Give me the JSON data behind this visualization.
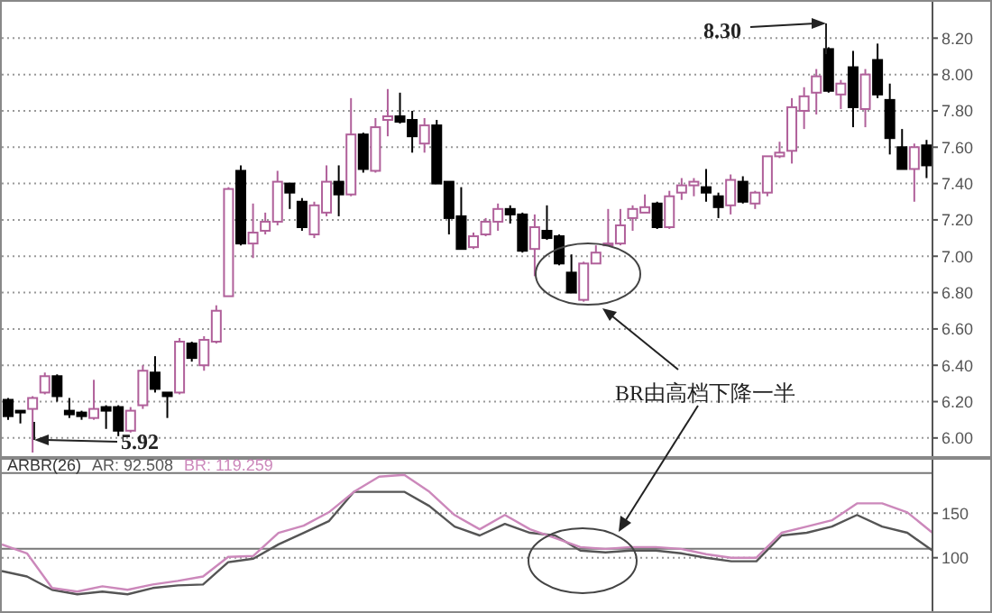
{
  "chart_data": [
    {
      "type": "candlestick",
      "categories": [
        null,
        null,
        null,
        null,
        null,
        null,
        null,
        null,
        null,
        null,
        null,
        null,
        null,
        null,
        null,
        null,
        null,
        null,
        null,
        null,
        null,
        null,
        null,
        null,
        null,
        null,
        null,
        null,
        null,
        null,
        null,
        null,
        null,
        null,
        null,
        null,
        null,
        null,
        null,
        null,
        null,
        null,
        null,
        null,
        null,
        null,
        null,
        null,
        null,
        null,
        null,
        null,
        null,
        null,
        null,
        null,
        null,
        null,
        null,
        null,
        null,
        null,
        null,
        null,
        null,
        null,
        null,
        null,
        null,
        null,
        null,
        null,
        null,
        null,
        null,
        null
      ],
      "ohlc": [
        [
          6.21,
          6.22,
          6.1,
          6.12
        ],
        [
          6.15,
          6.15,
          6.08,
          6.14
        ],
        [
          6.16,
          6.23,
          5.92,
          6.22
        ],
        [
          6.25,
          6.36,
          6.24,
          6.34
        ],
        [
          6.34,
          6.35,
          6.2,
          6.23
        ],
        [
          6.15,
          6.22,
          6.11,
          6.13
        ],
        [
          6.14,
          6.15,
          6.1,
          6.12
        ],
        [
          6.11,
          6.32,
          6.1,
          6.16
        ],
        [
          6.17,
          6.18,
          6.05,
          6.15
        ],
        [
          6.17,
          6.18,
          6.01,
          6.04
        ],
        [
          6.04,
          6.17,
          6.03,
          6.15
        ],
        [
          6.18,
          6.4,
          6.16,
          6.37
        ],
        [
          6.36,
          6.45,
          6.25,
          6.27
        ],
        [
          6.25,
          6.25,
          6.11,
          6.23
        ],
        [
          6.25,
          6.55,
          6.24,
          6.53
        ],
        [
          6.52,
          6.53,
          6.42,
          6.44
        ],
        [
          6.4,
          6.56,
          6.37,
          6.54
        ],
        [
          6.53,
          6.73,
          6.52,
          6.7
        ],
        [
          6.78,
          7.38,
          6.78,
          7.37
        ],
        [
          7.47,
          7.5,
          7.06,
          7.07
        ],
        [
          7.07,
          7.29,
          6.99,
          7.13
        ],
        [
          7.14,
          7.24,
          7.12,
          7.19
        ],
        [
          7.19,
          7.47,
          7.17,
          7.41
        ],
        [
          7.4,
          7.4,
          7.26,
          7.35
        ],
        [
          7.3,
          7.32,
          7.14,
          7.16
        ],
        [
          7.12,
          7.3,
          7.1,
          7.28
        ],
        [
          7.24,
          7.5,
          7.22,
          7.41
        ],
        [
          7.41,
          7.5,
          7.22,
          7.34
        ],
        [
          7.34,
          7.87,
          7.33,
          7.67
        ],
        [
          7.67,
          7.68,
          7.46,
          7.48
        ],
        [
          7.47,
          7.76,
          7.46,
          7.71
        ],
        [
          7.75,
          7.92,
          7.66,
          7.77
        ],
        [
          7.77,
          7.9,
          7.73,
          7.74
        ],
        [
          7.75,
          7.8,
          7.57,
          7.66
        ],
        [
          7.62,
          7.76,
          7.57,
          7.72
        ],
        [
          7.72,
          7.75,
          7.4,
          7.4
        ],
        [
          7.41,
          7.41,
          7.12,
          7.21
        ],
        [
          7.22,
          7.38,
          7.04,
          7.04
        ],
        [
          7.05,
          7.13,
          7.04,
          7.11
        ],
        [
          7.12,
          7.21,
          7.11,
          7.19
        ],
        [
          7.19,
          7.29,
          7.14,
          7.26
        ],
        [
          7.26,
          7.28,
          7.18,
          7.23
        ],
        [
          7.23,
          7.24,
          7.02,
          7.03
        ],
        [
          7.04,
          7.23,
          6.89,
          7.16
        ],
        [
          7.14,
          7.28,
          7.09,
          7.1
        ],
        [
          7.11,
          7.12,
          6.95,
          6.96
        ],
        [
          6.91,
          7.01,
          6.8,
          6.8
        ],
        [
          6.76,
          6.97,
          6.75,
          6.96
        ],
        [
          6.96,
          7.06,
          6.96,
          7.02
        ],
        [
          7.06,
          7.26,
          7.06,
          7.07
        ],
        [
          7.07,
          7.26,
          7.06,
          7.17
        ],
        [
          7.21,
          7.28,
          7.14,
          7.26
        ],
        [
          7.24,
          7.34,
          7.24,
          7.27
        ],
        [
          7.29,
          7.3,
          7.15,
          7.16
        ],
        [
          7.16,
          7.36,
          7.15,
          7.33
        ],
        [
          7.35,
          7.43,
          7.31,
          7.39
        ],
        [
          7.39,
          7.43,
          7.33,
          7.41
        ],
        [
          7.38,
          7.48,
          7.3,
          7.35
        ],
        [
          7.33,
          7.35,
          7.21,
          7.27
        ],
        [
          7.28,
          7.45,
          7.23,
          7.42
        ],
        [
          7.41,
          7.44,
          7.29,
          7.3
        ],
        [
          7.29,
          7.36,
          7.26,
          7.35
        ],
        [
          7.35,
          7.55,
          7.33,
          7.55
        ],
        [
          7.55,
          7.63,
          7.54,
          7.57
        ],
        [
          7.58,
          7.87,
          7.51,
          7.82
        ],
        [
          7.8,
          7.93,
          7.7,
          7.88
        ],
        [
          7.9,
          8.03,
          7.78,
          7.99
        ],
        [
          8.14,
          8.15,
          7.9,
          7.91
        ],
        [
          7.89,
          7.97,
          7.81,
          7.95
        ],
        [
          8.04,
          8.13,
          7.71,
          7.82
        ],
        [
          7.81,
          8.03,
          7.71,
          8.0
        ],
        [
          8.08,
          8.17,
          7.87,
          7.89
        ],
        [
          7.86,
          7.95,
          7.56,
          7.65
        ],
        [
          7.6,
          7.7,
          7.48,
          7.48
        ],
        [
          7.48,
          7.62,
          7.3,
          7.6
        ],
        [
          7.61,
          7.64,
          7.43,
          7.5
        ]
      ],
      "colors": [
        "#000000",
        "#000000",
        "#b0609a",
        "#b0609a",
        "#000000",
        "#000000",
        "#000000",
        "#b0609a",
        "#000000",
        "#000000",
        "#b0609a",
        "#b0609a",
        "#000000",
        "#000000",
        "#b0609a",
        "#000000",
        "#b0609a",
        "#b0609a",
        "#b0609a",
        "#000000",
        "#b0609a",
        "#b0609a",
        "#b0609a",
        "#000000",
        "#000000",
        "#b0609a",
        "#b0609a",
        "#000000",
        "#b0609a",
        "#000000",
        "#b0609a",
        "#b0609a",
        "#000000",
        "#000000",
        "#b0609a",
        "#000000",
        "#000000",
        "#000000",
        "#b0609a",
        "#b0609a",
        "#b0609a",
        "#000000",
        "#000000",
        "#b0609a",
        "#000000",
        "#000000",
        "#000000",
        "#b0609a",
        "#b0609a",
        "#b0609a",
        "#b0609a",
        "#b0609a",
        "#b0609a",
        "#000000",
        "#b0609a",
        "#b0609a",
        "#b0609a",
        "#000000",
        "#000000",
        "#b0609a",
        "#000000",
        "#b0609a",
        "#b0609a",
        "#b0609a",
        "#b0609a",
        "#b0609a",
        "#b0609a",
        "#000000",
        "#b0609a",
        "#000000",
        "#b0609a",
        "#000000",
        "#000000",
        "#000000",
        "#b0609a",
        "#000000"
      ],
      "ylim": [
        5.9,
        8.4
      ],
      "yticks": [
        {
          "value": 6.0,
          "label": "6.00"
        },
        {
          "value": 6.2,
          "label": "6.20"
        },
        {
          "value": 6.4,
          "label": "6.40"
        },
        {
          "value": 6.6,
          "label": "6.60"
        },
        {
          "value": 6.8,
          "label": "6.80"
        },
        {
          "value": 7.0,
          "label": "7.00"
        },
        {
          "value": 7.2,
          "label": "7.20"
        },
        {
          "value": 7.4,
          "label": "7.40"
        },
        {
          "value": 7.6,
          "label": "7.60"
        },
        {
          "value": 7.8,
          "label": "7.80"
        },
        {
          "value": 8.0,
          "label": "8.00"
        },
        {
          "value": 8.2,
          "label": "8.20"
        }
      ],
      "grid": "y",
      "tick_labels": "y",
      "annotations": [
        "8.30",
        "5.92",
        "BR由高档下降一半"
      ]
    },
    {
      "type": "line",
      "title": "ARBR(26)",
      "categories": [
        null,
        null,
        null,
        null,
        null,
        null,
        null,
        null,
        null,
        null,
        null,
        null,
        null,
        null,
        null,
        null,
        null,
        null,
        null,
        null,
        null,
        null,
        null,
        null,
        null,
        null,
        null,
        null,
        null,
        null,
        null,
        null,
        null,
        null,
        null,
        null,
        null,
        null
      ],
      "series": [
        {
          "name": "AR: 92.508",
          "color": "#555555",
          "values": [
            85,
            79,
            64,
            59,
            62,
            59,
            66,
            69,
            70,
            95,
            99,
            115,
            128,
            141,
            174,
            174,
            174,
            158,
            135,
            125,
            138,
            128,
            125,
            108,
            106,
            108,
            108,
            105,
            100,
            96,
            96,
            125,
            128,
            135,
            148,
            135,
            128,
            108
          ]
        },
        {
          "name": "BR: 119.259",
          "color": "#cc88bb",
          "values": [
            115,
            105,
            66,
            62,
            68,
            64,
            70,
            74,
            79,
            101,
            102,
            128,
            136,
            151,
            174,
            191,
            193,
            174,
            148,
            132,
            148,
            132,
            122,
            112,
            110,
            112,
            112,
            110,
            104,
            100,
            100,
            128,
            135,
            142,
            161,
            161,
            151,
            128
          ]
        }
      ],
      "ylim": [
        40,
        210
      ],
      "yticks": [
        100,
        150
      ],
      "grid": "y",
      "tick_labels": "y",
      "legend": "top left",
      "ref_lines": [
        {
          "axis": "y",
          "value": 195,
          "color": "#777777"
        },
        {
          "axis": "y",
          "value": 110,
          "color": "#777777"
        }
      ]
    }
  ]
}
